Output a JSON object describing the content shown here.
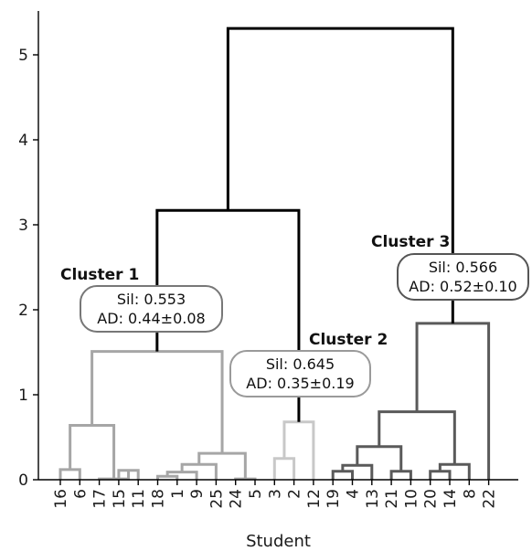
{
  "chart_data": {
    "type": "dendrogram",
    "xlabel": "Student",
    "ylabel": "",
    "ylim": [
      0,
      5.5
    ],
    "yticks": [
      0,
      1,
      2,
      3,
      4,
      5
    ],
    "leaves": [
      "16",
      "6",
      "17",
      "15",
      "11",
      "18",
      "1",
      "9",
      "25",
      "24",
      "5",
      "3",
      "2",
      "12",
      "19",
      "4",
      "13",
      "21",
      "10",
      "20",
      "14",
      "8",
      "22"
    ],
    "colors": {
      "root": "#000000",
      "cluster1": "#a6a6a6",
      "cluster2": "#c8c8c8",
      "cluster3": "#5a5a5a"
    },
    "merges": [
      {
        "a": "L0",
        "b": "L1",
        "h": 0.12,
        "c": "cluster1"
      },
      {
        "a": "L3",
        "b": "L4",
        "h": 0.11,
        "c": "cluster1"
      },
      {
        "a": "L2",
        "b": "N1",
        "h": 0.01,
        "c": "cluster1"
      },
      {
        "a": "N0",
        "b": "N2",
        "h": 0.64,
        "c": "cluster1"
      },
      {
        "a": "L5",
        "b": "L6",
        "h": 0.04,
        "c": "cluster1"
      },
      {
        "a": "N4",
        "b": "L7",
        "h": 0.09,
        "c": "cluster1"
      },
      {
        "a": "N5",
        "b": "L8",
        "h": 0.18,
        "c": "cluster1"
      },
      {
        "a": "L9",
        "b": "L10",
        "h": 0.01,
        "c": "cluster1"
      },
      {
        "a": "N6",
        "b": "N7",
        "h": 0.31,
        "c": "cluster1"
      },
      {
        "a": "N3",
        "b": "N8",
        "h": 1.51,
        "c": "cluster1"
      },
      {
        "a": "L11",
        "b": "L12",
        "h": 0.25,
        "c": "cluster2"
      },
      {
        "a": "N10",
        "b": "L13",
        "h": 0.68,
        "c": "cluster2"
      },
      {
        "a": "N9",
        "b": "N11",
        "h": 3.17,
        "c": "root"
      },
      {
        "a": "L14",
        "b": "L15",
        "h": 0.1,
        "c": "cluster3"
      },
      {
        "a": "N13",
        "b": "L16",
        "h": 0.17,
        "c": "cluster3"
      },
      {
        "a": "L17",
        "b": "L18",
        "h": 0.1,
        "c": "cluster3"
      },
      {
        "a": "N14",
        "b": "N15",
        "h": 0.39,
        "c": "cluster3"
      },
      {
        "a": "L19",
        "b": "L20",
        "h": 0.1,
        "c": "cluster3"
      },
      {
        "a": "N17",
        "b": "L21",
        "h": 0.18,
        "c": "cluster3"
      },
      {
        "a": "N16",
        "b": "N18",
        "h": 0.8,
        "c": "cluster3"
      },
      {
        "a": "N19",
        "b": "L22",
        "h": 1.84,
        "c": "cluster3"
      },
      {
        "a": "N12",
        "b": "N20",
        "h": 5.31,
        "c": "root"
      }
    ],
    "annotations": [
      {
        "title": "Cluster 1",
        "line1": "Sil: 0.553",
        "line2": "AD: 0.44±0.08"
      },
      {
        "title": "Cluster 2",
        "line1": "Sil: 0.645",
        "line2": "AD: 0.35±0.19"
      },
      {
        "title": "Cluster 3",
        "line1": "Sil: 0.566",
        "line2": "AD: 0.52±0.10"
      }
    ]
  }
}
